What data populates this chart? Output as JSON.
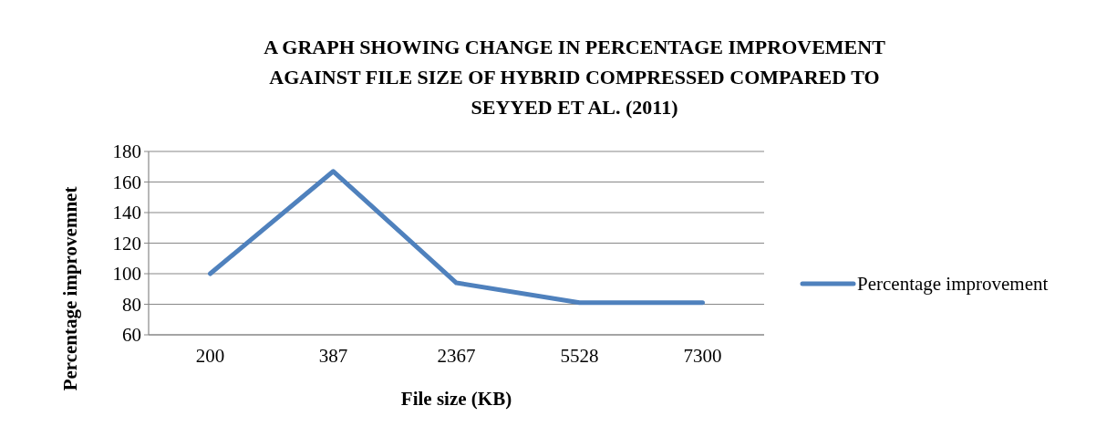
{
  "chart_data": {
    "type": "line",
    "title": "A GRAPH SHOWING CHANGE IN PERCENTAGE IMPROVEMENT AGAINST FILE SIZE OF HYBRID COMPRESSED COMPARED TO SEYYED ET AL. (2011)",
    "xlabel": "File size (KB)",
    "ylabel": "Percentage improvemnet",
    "categories": [
      "200",
      "387",
      "2367",
      "5528",
      "7300"
    ],
    "series": [
      {
        "name": "Percentage improvement",
        "color": "#4f81bd",
        "values": [
          100,
          167,
          94,
          81,
          81
        ]
      }
    ],
    "ylim": [
      60,
      180
    ],
    "yticks": [
      60,
      80,
      100,
      120,
      140,
      160,
      180
    ],
    "grid": "y",
    "legend": "right",
    "marker": "none",
    "line_style": "solid"
  }
}
